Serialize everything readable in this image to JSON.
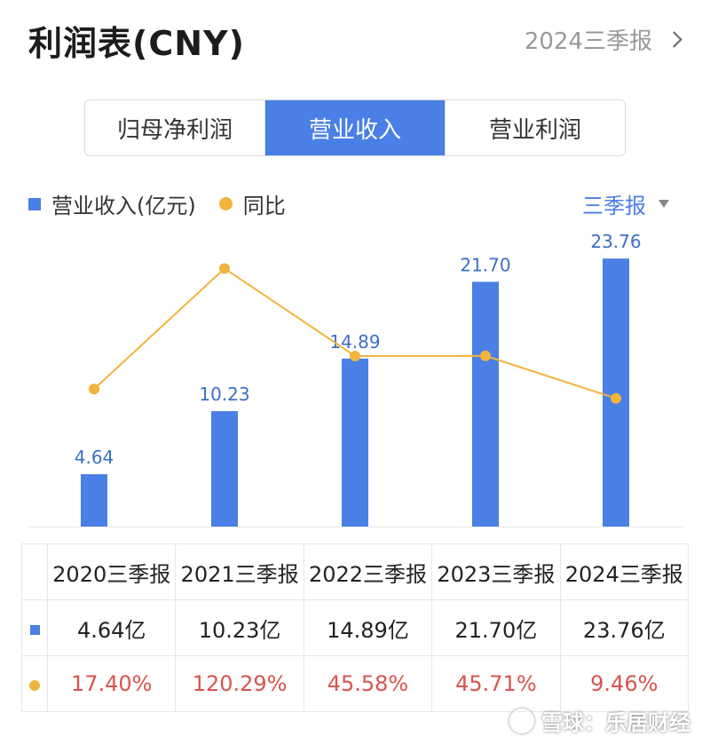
{
  "header": {
    "title": "利润表(CNY)",
    "period_link": "2024三季报"
  },
  "tabs": [
    {
      "label": "归母净利润",
      "active": false
    },
    {
      "label": "营业收入",
      "active": true
    },
    {
      "label": "营业利润",
      "active": false
    }
  ],
  "legend": {
    "bar": "营业收入(亿元)",
    "line": "同比"
  },
  "period_select": "三季报",
  "colors": {
    "bar": "#4a7fe5",
    "line": "#f0b43c",
    "percent_text": "#d9534f"
  },
  "chart_data": {
    "type": "bar",
    "categories": [
      "2020三季报",
      "2021三季报",
      "2022三季报",
      "2023三季报",
      "2024三季报"
    ],
    "series": [
      {
        "name": "营业收入(亿元)",
        "type": "bar",
        "values": [
          4.64,
          10.23,
          14.89,
          21.7,
          23.76
        ],
        "labels": [
          "4.64",
          "10.23",
          "14.89",
          "21.70",
          "23.76"
        ]
      },
      {
        "name": "同比",
        "type": "line",
        "values": [
          17.4,
          120.29,
          45.58,
          45.71,
          9.46
        ]
      }
    ],
    "ylim": [
      0,
      27
    ],
    "y2lim": [
      -100,
      160
    ],
    "grid": false
  },
  "table": {
    "headers": [
      "2020三季报",
      "2021三季报",
      "2022三季报",
      "2023三季报",
      "2024三季报"
    ],
    "revenue": [
      "4.64亿",
      "10.23亿",
      "14.89亿",
      "21.70亿",
      "23.76亿"
    ],
    "yoy": [
      "17.40%",
      "120.29%",
      "45.58%",
      "45.71%",
      "9.46%"
    ]
  },
  "watermark": "雪球：乐居财经"
}
